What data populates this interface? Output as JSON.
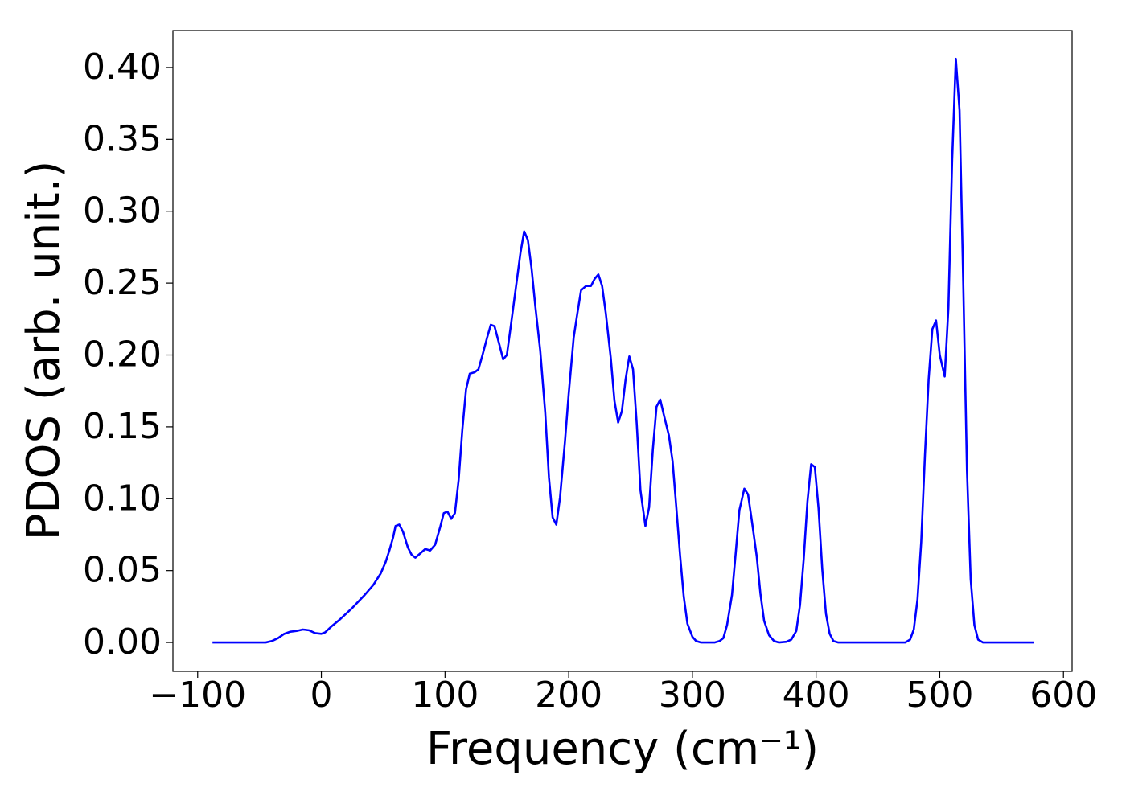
{
  "chart_data": {
    "type": "line",
    "xlabel": "Frequency (cm⁻¹)",
    "ylabel": "PDOS (arb. unit.)",
    "xlim": [
      -120,
      607
    ],
    "ylim": [
      -0.0201,
      0.4257
    ],
    "xticks": [
      {
        "value": -100,
        "label": "−100"
      },
      0,
      100,
      200,
      300,
      400,
      500,
      600
    ],
    "yticks": [
      {
        "value": 0,
        "label": "0.00"
      },
      {
        "value": 0.05,
        "label": "0.05"
      },
      {
        "value": 0.1,
        "label": "0.10"
      },
      {
        "value": 0.15,
        "label": "0.15"
      },
      {
        "value": 0.2,
        "label": "0.20"
      },
      {
        "value": 0.25,
        "label": "0.25"
      },
      {
        "value": 0.3,
        "label": "0.30"
      },
      {
        "value": 0.35,
        "label": "0.35"
      },
      {
        "value": 0.4,
        "label": "0.40"
      }
    ],
    "grid": false,
    "x": [
      -88,
      -45,
      -40,
      -35,
      -30,
      -25,
      -20,
      -15,
      -10,
      -5,
      0,
      3,
      8,
      15,
      25,
      35,
      42,
      48,
      52,
      55,
      58,
      60,
      63,
      66,
      70,
      73,
      76,
      80,
      84,
      88,
      92,
      96,
      99,
      102,
      105,
      108,
      111,
      114,
      117,
      120,
      124,
      127,
      130,
      134,
      137,
      140,
      144,
      147,
      150,
      153,
      157,
      161,
      164,
      167,
      170,
      173,
      177,
      181,
      184,
      187,
      190,
      193,
      197,
      200,
      204,
      207,
      210,
      214,
      218,
      221,
      224,
      227,
      230,
      234,
      237,
      240,
      243,
      246,
      249,
      252,
      255,
      258,
      262,
      265,
      268,
      271,
      274,
      277,
      281,
      284,
      287,
      290,
      293,
      296,
      300,
      303,
      307,
      318,
      322,
      325,
      328,
      332,
      335,
      338,
      342,
      345,
      348,
      352,
      355,
      358,
      362,
      366,
      370,
      376,
      380,
      384,
      387,
      390,
      393,
      396,
      399,
      402,
      405,
      408,
      411,
      414,
      418,
      472,
      476,
      479,
      482,
      485,
      488,
      491,
      494,
      497,
      500,
      504,
      507,
      510,
      513,
      516,
      519,
      522,
      525,
      528,
      531,
      535,
      576
    ],
    "series": [
      {
        "color": "#0000ff",
        "values": [
          0,
          0,
          0.001,
          0.003,
          0.006,
          0.0075,
          0.008,
          0.009,
          0.0085,
          0.0065,
          0.006,
          0.007,
          0.011,
          0.016,
          0.024,
          0.033,
          0.04,
          0.048,
          0.056,
          0.064,
          0.073,
          0.081,
          0.082,
          0.077,
          0.066,
          0.061,
          0.059,
          0.062,
          0.065,
          0.064,
          0.068,
          0.08,
          0.09,
          0.091,
          0.086,
          0.09,
          0.113,
          0.148,
          0.176,
          0.187,
          0.188,
          0.19,
          0.199,
          0.212,
          0.221,
          0.22,
          0.207,
          0.197,
          0.2,
          0.219,
          0.245,
          0.271,
          0.286,
          0.28,
          0.26,
          0.234,
          0.203,
          0.16,
          0.115,
          0.087,
          0.082,
          0.101,
          0.14,
          0.173,
          0.212,
          0.229,
          0.245,
          0.248,
          0.248,
          0.253,
          0.256,
          0.248,
          0.229,
          0.198,
          0.168,
          0.153,
          0.161,
          0.183,
          0.199,
          0.19,
          0.152,
          0.106,
          0.081,
          0.094,
          0.134,
          0.164,
          0.169,
          0.158,
          0.144,
          0.126,
          0.094,
          0.061,
          0.032,
          0.013,
          0.004,
          0.001,
          0,
          0,
          0.001,
          0.003,
          0.012,
          0.033,
          0.062,
          0.092,
          0.107,
          0.103,
          0.085,
          0.06,
          0.034,
          0.015,
          0.005,
          0.001,
          0,
          0.0005,
          0.002,
          0.008,
          0.026,
          0.058,
          0.098,
          0.124,
          0.122,
          0.093,
          0.051,
          0.02,
          0.006,
          0.001,
          0,
          0,
          0.002,
          0.009,
          0.03,
          0.07,
          0.13,
          0.183,
          0.218,
          0.224,
          0.2,
          0.185,
          0.233,
          0.335,
          0.406,
          0.37,
          0.25,
          0.12,
          0.044,
          0.012,
          0.002,
          0,
          0
        ]
      }
    ]
  }
}
